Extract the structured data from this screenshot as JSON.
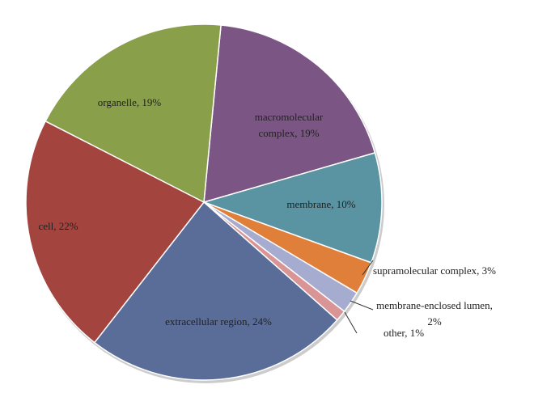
{
  "chart_data": {
    "type": "pie",
    "value_labels": [
      "macromolecular complex, 19%",
      "membrane, 10%",
      "supramolecular complex, 3%",
      "membrane-enclosed lumen, 2%",
      "other, 1%",
      "extracellular region, 24%",
      "cell, 22%",
      "organelle, 19%"
    ],
    "values": [
      19,
      10,
      3,
      2,
      1,
      24,
      22,
      19
    ],
    "colors": [
      "#7b5684",
      "#5a93a1",
      "#e07f3a",
      "#a6acd0",
      "#d99595",
      "#5a6c98",
      "#a4443f",
      "#8a9f49"
    ]
  }
}
